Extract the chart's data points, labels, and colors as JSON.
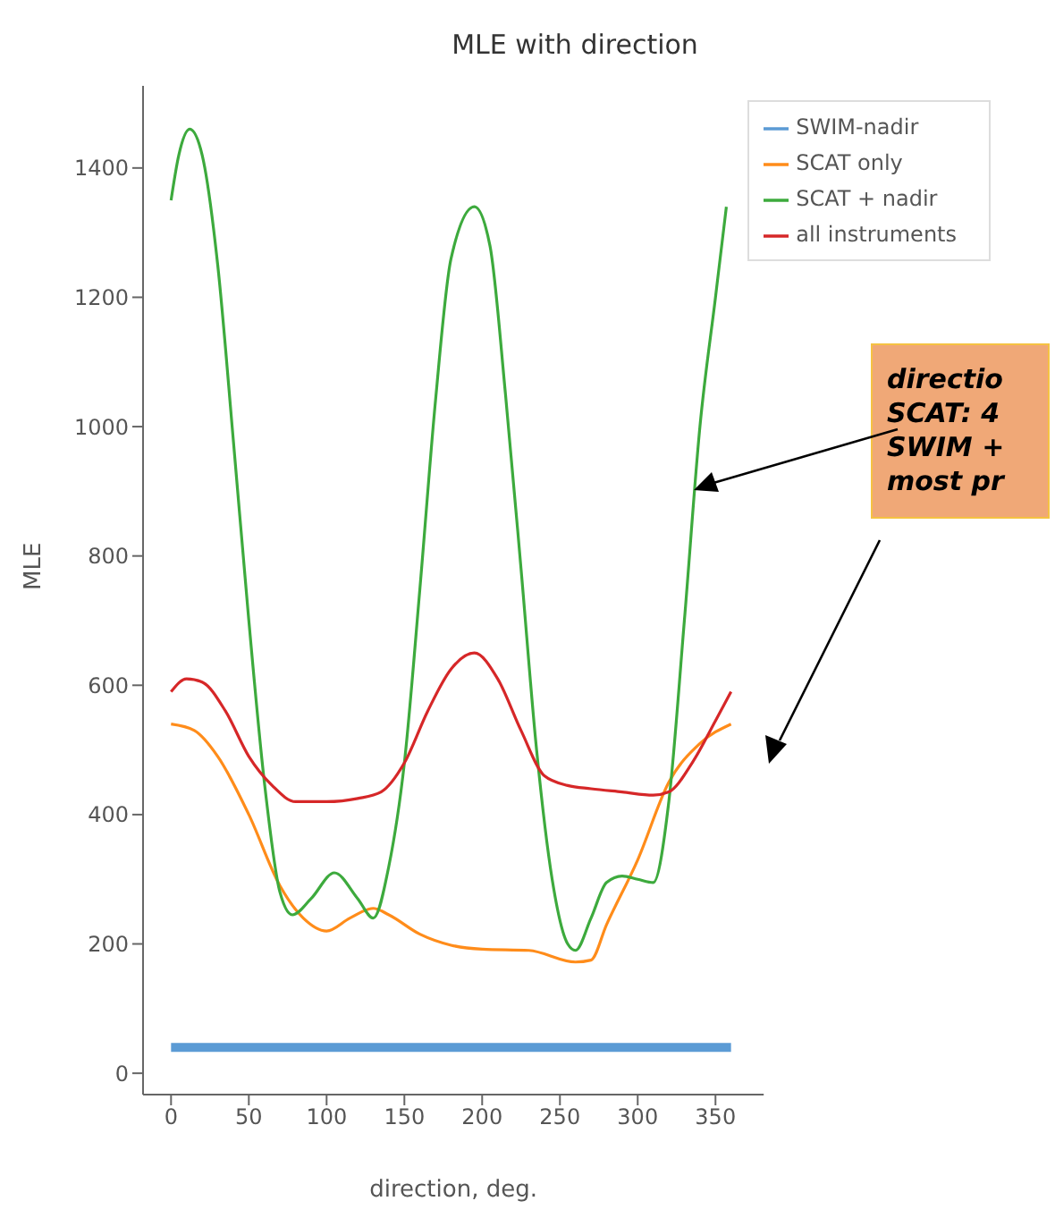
{
  "chart_data": {
    "type": "line",
    "title": "MLE with direction",
    "xlabel": "direction, deg.",
    "ylabel": "MLE",
    "xlim": [
      -18,
      381
    ],
    "xticks": [
      0,
      50,
      100,
      150,
      200,
      250,
      300,
      350
    ],
    "ylim": [
      -33,
      1527
    ],
    "yticks": [
      0,
      200,
      400,
      600,
      800,
      1000,
      1200,
      1400
    ],
    "grid": false,
    "legend": "top right",
    "marker": "none",
    "line_style": "solid",
    "annotations": [
      "directio",
      "SCAT: 4",
      "SWIM +",
      "most pr"
    ],
    "series": [
      {
        "name": "SWIM-nadir",
        "color": "#5b9bd5",
        "x": [
          0,
          360
        ],
        "values": [
          40,
          40
        ]
      },
      {
        "name": "SCAT only",
        "color": "#ff8c1a",
        "x": [
          0,
          15,
          30,
          50,
          70,
          85,
          100,
          115,
          130,
          140,
          160,
          180,
          200,
          230,
          260,
          270,
          280,
          300,
          320,
          340,
          360
        ],
        "values": [
          540,
          530,
          490,
          400,
          290,
          240,
          220,
          240,
          255,
          245,
          215,
          198,
          192,
          190,
          172,
          175,
          230,
          330,
          450,
          510,
          540
        ]
      },
      {
        "name": "SCAT + nadir",
        "color": "#3daa3d",
        "x": [
          0,
          5,
          12,
          20,
          30,
          40,
          50,
          60,
          70,
          78,
          90,
          105,
          120,
          130,
          140,
          150,
          160,
          170,
          180,
          195,
          205,
          215,
          225,
          235,
          245,
          255,
          260,
          270,
          280,
          290,
          300,
          310,
          320,
          330,
          340,
          350,
          357
        ],
        "values": [
          1350,
          1420,
          1460,
          1420,
          1250,
          980,
          700,
          450,
          280,
          245,
          270,
          310,
          270,
          240,
          320,
          480,
          750,
          1040,
          1260,
          1340,
          1280,
          1050,
          780,
          500,
          300,
          200,
          190,
          240,
          295,
          305,
          300,
          295,
          420,
          700,
          1000,
          1200,
          1340
        ]
      },
      {
        "name": "all instruments",
        "color": "#d62728",
        "x": [
          0,
          10,
          20,
          35,
          50,
          65,
          80,
          100,
          120,
          135,
          150,
          165,
          180,
          195,
          210,
          225,
          240,
          255,
          270,
          290,
          310,
          320,
          335,
          350,
          360
        ],
        "values": [
          590,
          610,
          605,
          560,
          490,
          445,
          420,
          420,
          425,
          435,
          480,
          560,
          625,
          650,
          610,
          530,
          460,
          445,
          440,
          435,
          430,
          435,
          480,
          545,
          590
        ]
      }
    ]
  }
}
